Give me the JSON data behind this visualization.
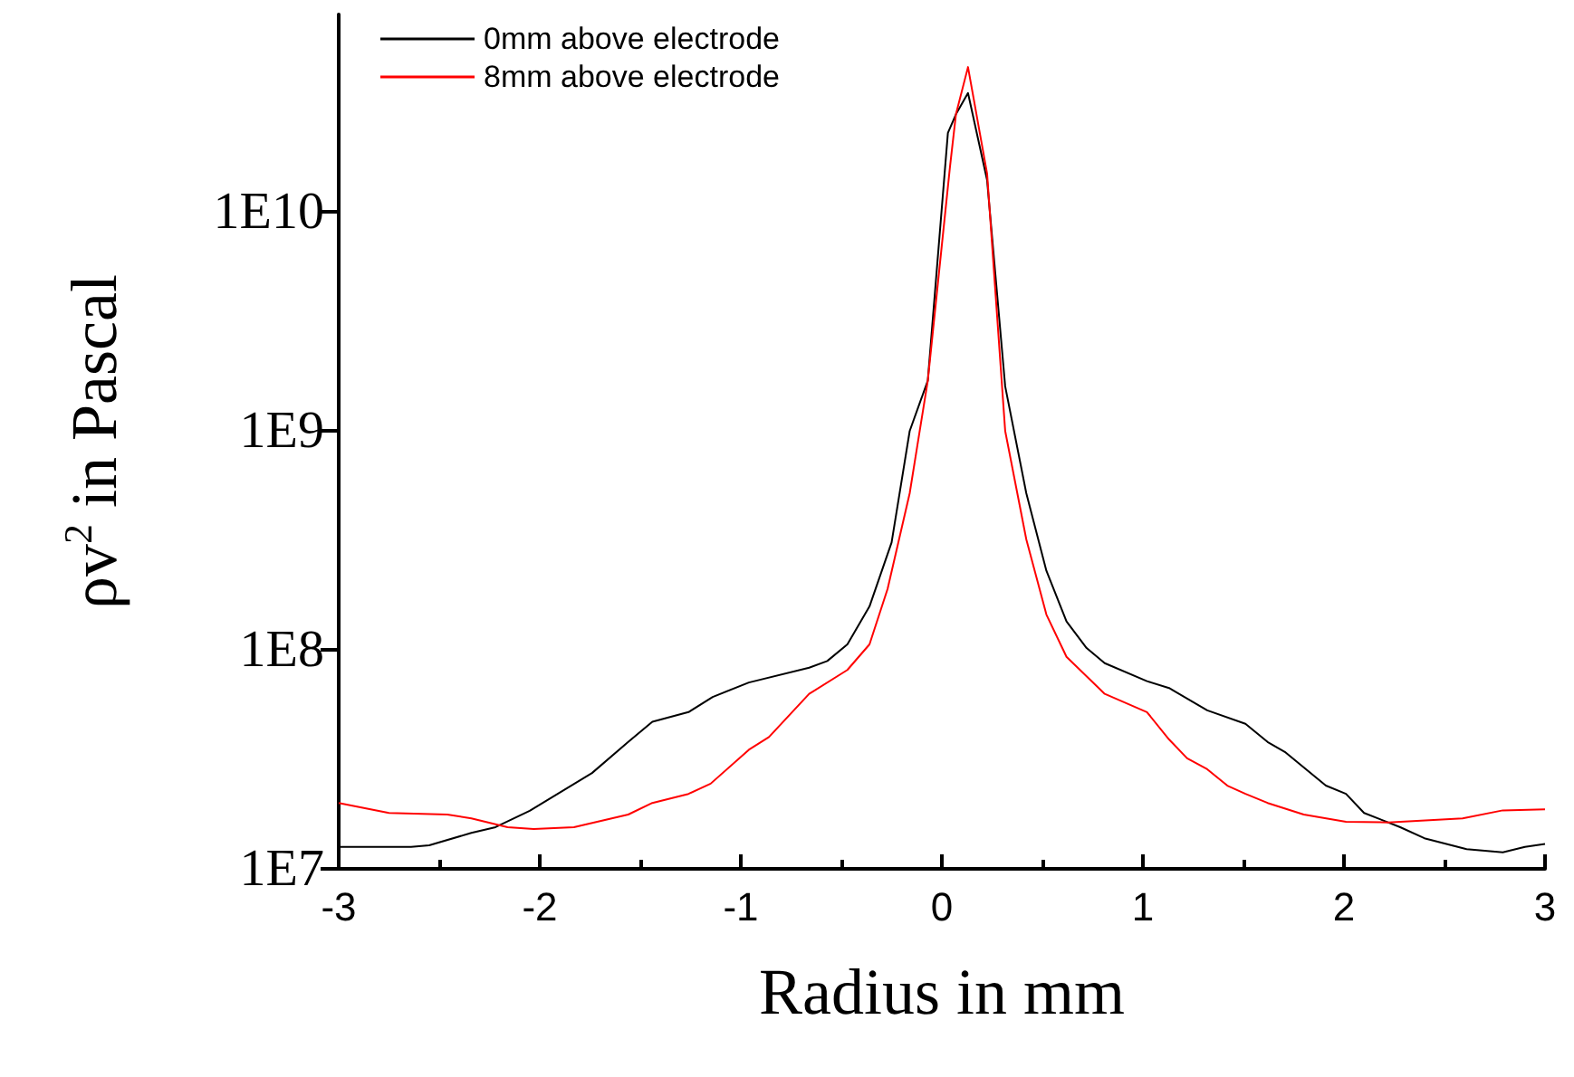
{
  "chart_data": {
    "type": "line",
    "xlabel": "Radius in mm",
    "ylabel": "ρv$^{2}$ in Pascal",
    "xlim": [
      -3,
      3
    ],
    "xticks": [
      -3,
      -2,
      -1,
      0,
      1,
      2,
      3
    ],
    "ylim": [
      10000000,
      80000000000
    ],
    "log": "y",
    "yticks": [
      {
        "value": 10000000,
        "label": "1E7"
      },
      {
        "value": 100000000,
        "label": "1E8"
      },
      {
        "value": 1000000000,
        "label": "1E9"
      },
      {
        "value": 10000000000,
        "label": "1E10"
      }
    ],
    "legend": "top left",
    "grid": false,
    "marker": "none",
    "line_style": "solid",
    "series": [
      {
        "name": "0mm above electrode",
        "color": "#000000",
        "x": [
          -3,
          -2.64,
          -2.55,
          -2.34,
          -2.22,
          -2.05,
          -1.74,
          -1.56,
          -1.44,
          -1.26,
          -1.14,
          -0.96,
          -0.66,
          -0.57,
          -0.47,
          -0.36,
          -0.25,
          -0.16,
          -0.07,
          0.03,
          0.07,
          0.13,
          0.225,
          0.315,
          0.42,
          0.52,
          0.62,
          0.72,
          0.81,
          1.02,
          1.13,
          1.32,
          1.51,
          1.62,
          1.71,
          1.91,
          2.01,
          2.1,
          2.28,
          2.4,
          2.61,
          2.79,
          2.9,
          3
        ],
        "values": [
          12600000,
          12600000,
          12800000,
          14600000,
          15500000,
          18400000,
          27400000,
          38000000,
          47000000,
          52000000,
          61000000,
          71000000,
          83000000,
          89000000,
          106000000,
          158000000,
          310000000,
          1000000000,
          1700000000,
          23000000000,
          28000000000,
          35000000000,
          14000000000,
          1600000000,
          520000000,
          230000000,
          135000000,
          102000000,
          87000000,
          72000000,
          67000000,
          53000000,
          46000000,
          38000000,
          34000000,
          24000000,
          22000000,
          18000000,
          15500000,
          13800000,
          12300000,
          11900000,
          12600000,
          13000000
        ]
      },
      {
        "name": "8mm above electrode",
        "color": "#ff0000",
        "x": [
          -3,
          -2.75,
          -2.46,
          -2.34,
          -2.16,
          -2.03,
          -1.83,
          -1.56,
          -1.44,
          -1.26,
          -1.15,
          -0.96,
          -0.86,
          -0.66,
          -0.47,
          -0.36,
          -0.27,
          -0.16,
          -0.07,
          0.04,
          0.07,
          0.13,
          0.225,
          0.315,
          0.42,
          0.52,
          0.62,
          0.81,
          1.02,
          1.13,
          1.22,
          1.32,
          1.42,
          1.51,
          1.62,
          1.8,
          2.01,
          2.22,
          2.59,
          2.79,
          3
        ],
        "values": [
          20000000,
          18000000,
          17700000,
          17000000,
          15500000,
          15200000,
          15500000,
          17700000,
          20000000,
          22000000,
          24500000,
          35000000,
          40000000,
          63000000,
          81000000,
          106000000,
          190000000,
          520000000,
          1700000000,
          16000000000,
          28000000000,
          46000000000,
          15000000000,
          1000000000,
          320000000,
          145000000,
          93000000,
          63000000,
          52000000,
          39000000,
          32000000,
          28500000,
          24000000,
          22000000,
          20000000,
          17700000,
          16400000,
          16300000,
          17000000,
          18500000,
          18700000
        ]
      }
    ]
  }
}
